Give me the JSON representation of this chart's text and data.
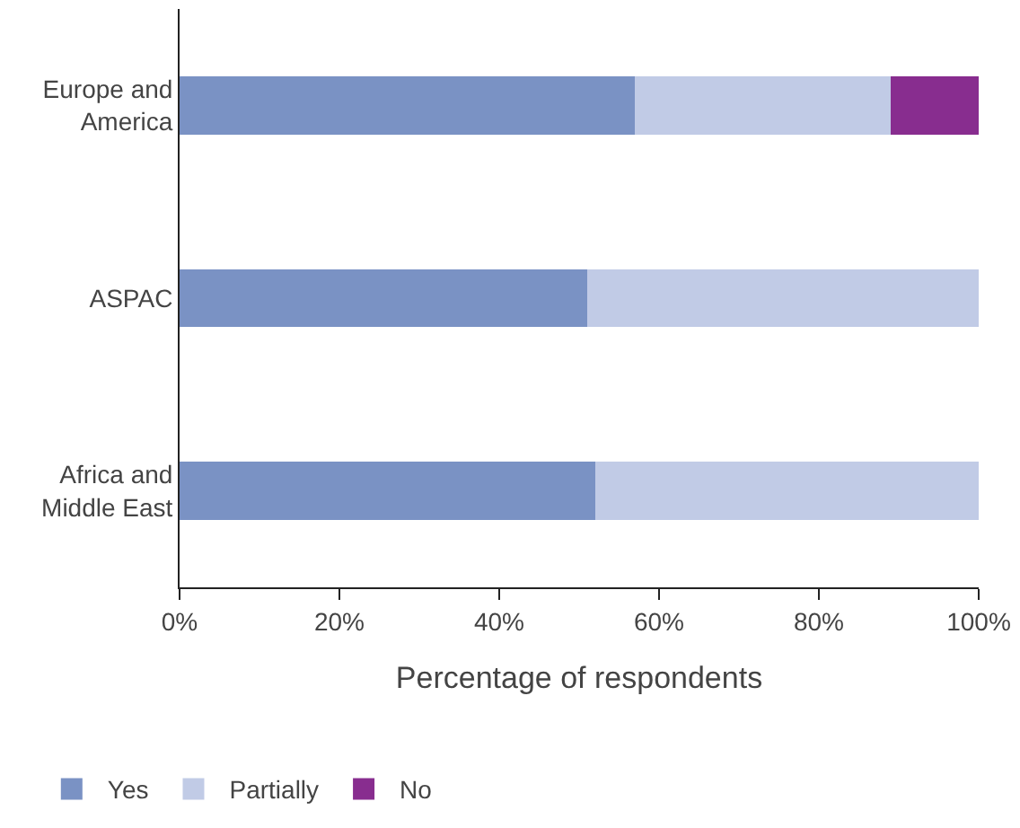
{
  "chart_data": {
    "type": "bar",
    "orientation": "horizontal",
    "stacked": true,
    "xlabel": "Percentage of respondents",
    "categories": [
      "Europe and America",
      "ASPAC",
      "Africa and Middle East"
    ],
    "series": [
      {
        "name": "Yes",
        "color": "#7a92c4",
        "values": [
          57,
          51,
          52
        ]
      },
      {
        "name": "Partially",
        "color": "#c1cbe6",
        "values": [
          32,
          49,
          48
        ]
      },
      {
        "name": "No",
        "color": "#882d8f",
        "values": [
          11,
          0,
          0
        ]
      }
    ],
    "xlim": [
      0,
      100
    ],
    "xticks": [
      {
        "value": 0,
        "label": "0%"
      },
      {
        "value": 20,
        "label": "20%"
      },
      {
        "value": 40,
        "label": "40%"
      },
      {
        "value": 60,
        "label": "60%"
      },
      {
        "value": 80,
        "label": "80%"
      },
      {
        "value": 100,
        "label": "100%"
      }
    ],
    "legend": "bottom left"
  }
}
